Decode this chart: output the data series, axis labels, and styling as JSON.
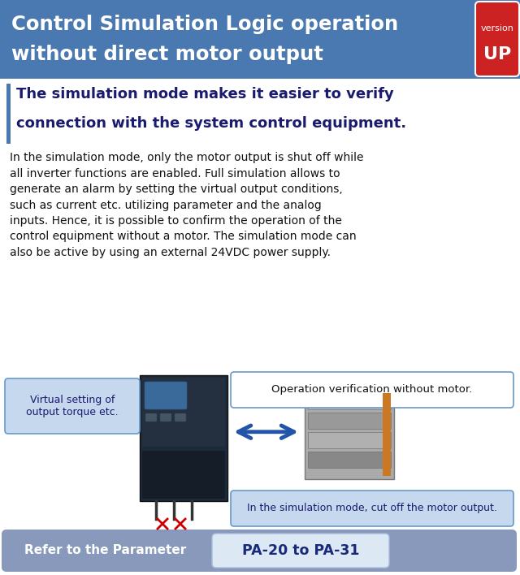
{
  "title_line1": "Control Simulation Logic operation",
  "title_line2": "without direct motor output",
  "title_bg_color": "#4a78b0",
  "title_text_color": "#ffffff",
  "version_bg": "#cc2222",
  "subtitle_line1": "The simulation mode makes it easier to verify",
  "subtitle_line2": "connection with the system control equipment.",
  "subtitle_color": "#1a1a6e",
  "accent_bar_color": "#4a78b0",
  "body_text": "In the simulation mode, only the motor output is shut off while all inverter functions are enabled. Full simulation allows to generate an alarm by setting the virtual output conditions, such as current etc. utilizing parameter and the analog inputs. Hence, it is possible to confirm the operation of the control equipment without a motor. The simulation mode can also be active by using an external 24VDC power supply.",
  "body_text_color": "#111111",
  "callout_left_text": "Virtual setting of\noutput torque etc.",
  "callout_left_bg": "#c5d8ee",
  "callout_left_border": "#6699cc",
  "callout_right_text": "Operation verification without motor.",
  "callout_right_bg": "#ffffff",
  "callout_right_border": "#6699cc",
  "callout_bottom_text": "In the simulation mode, cut off the motor output.",
  "callout_bottom_bg": "#c5d8ee",
  "callout_bottom_border": "#6699cc",
  "arrow_color": "#2255aa",
  "refer_bg": "#8899bb",
  "refer_text": "Refer to the Parameter",
  "refer_text_color": "#ffffff",
  "param_bg": "#dde8f5",
  "param_text": "PA-20 to PA-31",
  "param_text_color": "#1a2a7a",
  "bg_color": "#ffffff",
  "separator_color": "#4a78b0",
  "fig_w": 6.4,
  "fig_h": 7.08,
  "dpi": 100
}
